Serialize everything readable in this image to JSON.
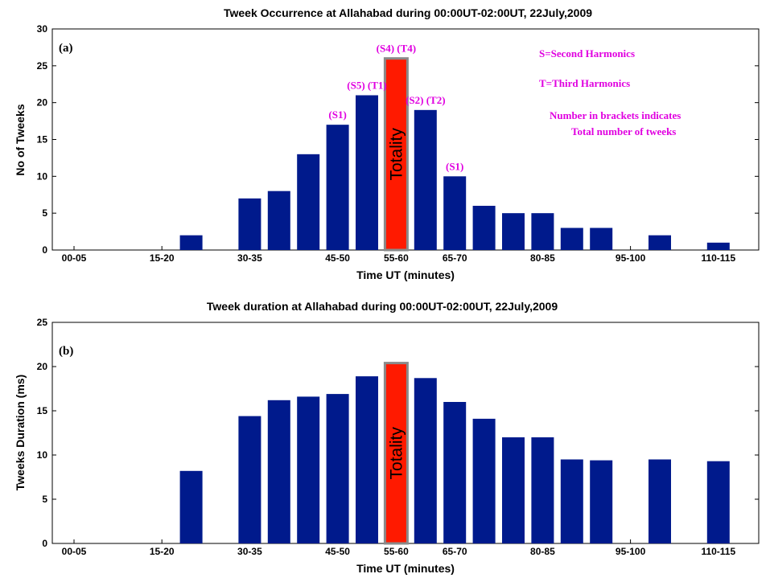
{
  "chart_data": [
    {
      "type": "bar",
      "panel_label": "(a)",
      "title": "Tweek Occurrence at Allahabad during 00:00UT-02:00UT, 22July,2009",
      "xlabel": "Time UT (minutes)",
      "ylabel": "No of Tweeks",
      "ylim": [
        0,
        30
      ],
      "yticks": [
        0,
        5,
        10,
        15,
        20,
        25,
        30
      ],
      "categories": [
        "00-05",
        "05-10",
        "10-15",
        "15-20",
        "20-25",
        "25-30",
        "30-35",
        "35-40",
        "40-45",
        "45-50",
        "50-55",
        "55-60",
        "60-65",
        "65-70",
        "70-75",
        "75-80",
        "80-85",
        "85-90",
        "90-95",
        "95-100",
        "100-105",
        "105-110",
        "110-115",
        "115-120"
      ],
      "tick_labels": [
        "00-05",
        "15-20",
        "30-35",
        "45-50",
        "55-60",
        "65-70",
        "80-85",
        "95-100",
        "110-115"
      ],
      "highlight_tick": "55-60",
      "values": [
        0,
        0,
        0,
        0,
        2,
        0,
        7,
        8,
        13,
        17,
        21,
        26,
        19,
        10,
        6,
        5,
        5,
        3,
        3,
        0,
        2,
        0,
        1,
        0
      ],
      "highlight_category": "55-60",
      "highlight_label": "Totality",
      "bar_color": "#001a8c",
      "highlight_color": "#ff1a00",
      "bar_annotations": [
        {
          "category": "45-50",
          "text": "(S1)"
        },
        {
          "category": "50-55",
          "text": "(S5) (T1)"
        },
        {
          "category": "55-60",
          "text": "(S4) (T4)"
        },
        {
          "category": "60-65",
          "text": "(S2) (T2)"
        },
        {
          "category": "65-70",
          "text": "(S1)"
        }
      ],
      "notes": [
        "S=Second Harmonics",
        "T=Third Harmonics",
        "Number in brackets indicates",
        "Total number of tweeks"
      ]
    },
    {
      "type": "bar",
      "panel_label": "(b)",
      "title": "Tweek duration at Allahabad during 00:00UT-02:00UT, 22July,2009",
      "xlabel": "Time UT (minutes)",
      "ylabel": "Tweeks Duration (ms)",
      "ylim": [
        0,
        25
      ],
      "yticks": [
        0,
        5,
        10,
        15,
        20,
        25
      ],
      "categories": [
        "00-05",
        "05-10",
        "10-15",
        "15-20",
        "20-25",
        "25-30",
        "30-35",
        "35-40",
        "40-45",
        "45-50",
        "50-55",
        "55-60",
        "60-65",
        "65-70",
        "70-75",
        "75-80",
        "80-85",
        "85-90",
        "90-95",
        "95-100",
        "100-105",
        "105-110",
        "110-115",
        "115-120"
      ],
      "tick_labels": [
        "00-05",
        "15-20",
        "30-35",
        "45-50",
        "55-60",
        "65-70",
        "80-85",
        "95-100",
        "110-115"
      ],
      "highlight_tick": "55-60",
      "values": [
        0,
        0,
        0,
        0,
        8.2,
        0,
        14.4,
        16.2,
        16.6,
        16.9,
        18.9,
        20.4,
        18.7,
        16.0,
        14.1,
        12.0,
        12.0,
        9.5,
        9.4,
        0,
        9.5,
        0,
        9.3,
        0
      ],
      "highlight_category": "55-60",
      "highlight_label": "Totality",
      "bar_color": "#001a8c",
      "highlight_color": "#ff1a00"
    }
  ]
}
